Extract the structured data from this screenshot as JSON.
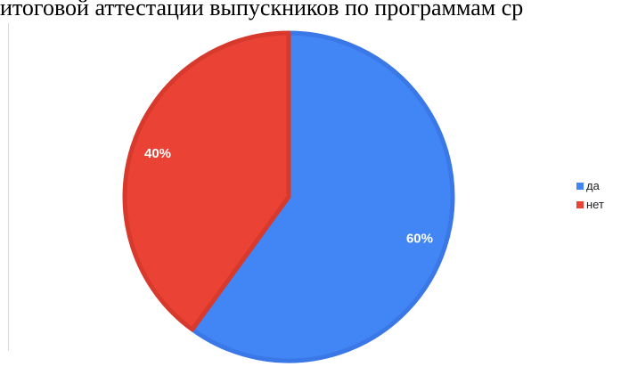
{
  "heading": "итоговой аттестации выпускников по программам ср",
  "chart_data": {
    "type": "pie",
    "title": "",
    "slices": [
      {
        "label": "да",
        "value": 60,
        "display": "60%",
        "color": "#4285f4",
        "edge": "#3b78e7"
      },
      {
        "label": "нет",
        "value": 40,
        "display": "40%",
        "color": "#ea4335",
        "edge": "#d73a2c"
      }
    ],
    "legend": {
      "position": "right"
    }
  }
}
